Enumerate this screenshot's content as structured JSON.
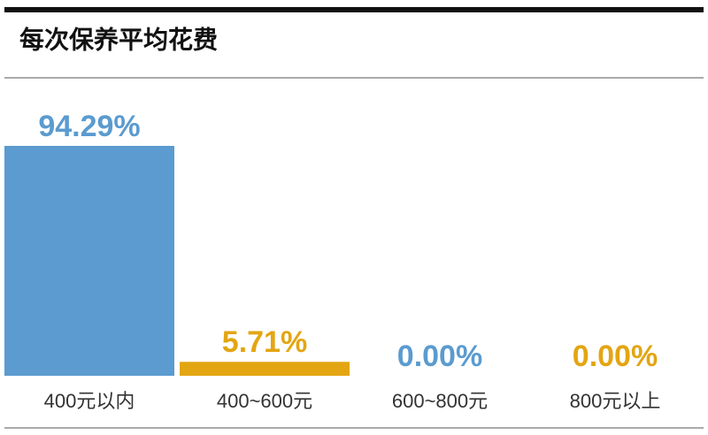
{
  "chart_data": {
    "type": "bar",
    "title": "每次保养平均花费",
    "categories": [
      "400元以内",
      "400~600元",
      "600~800元",
      "800元以上"
    ],
    "values": [
      94.29,
      5.71,
      0,
      0
    ],
    "value_labels": [
      "94.29%",
      "5.71%",
      "0.00%",
      "0.00%"
    ],
    "colors": [
      "#5b9bcf",
      "#e3a512",
      "#5b9bcf",
      "#e3a512"
    ]
  }
}
